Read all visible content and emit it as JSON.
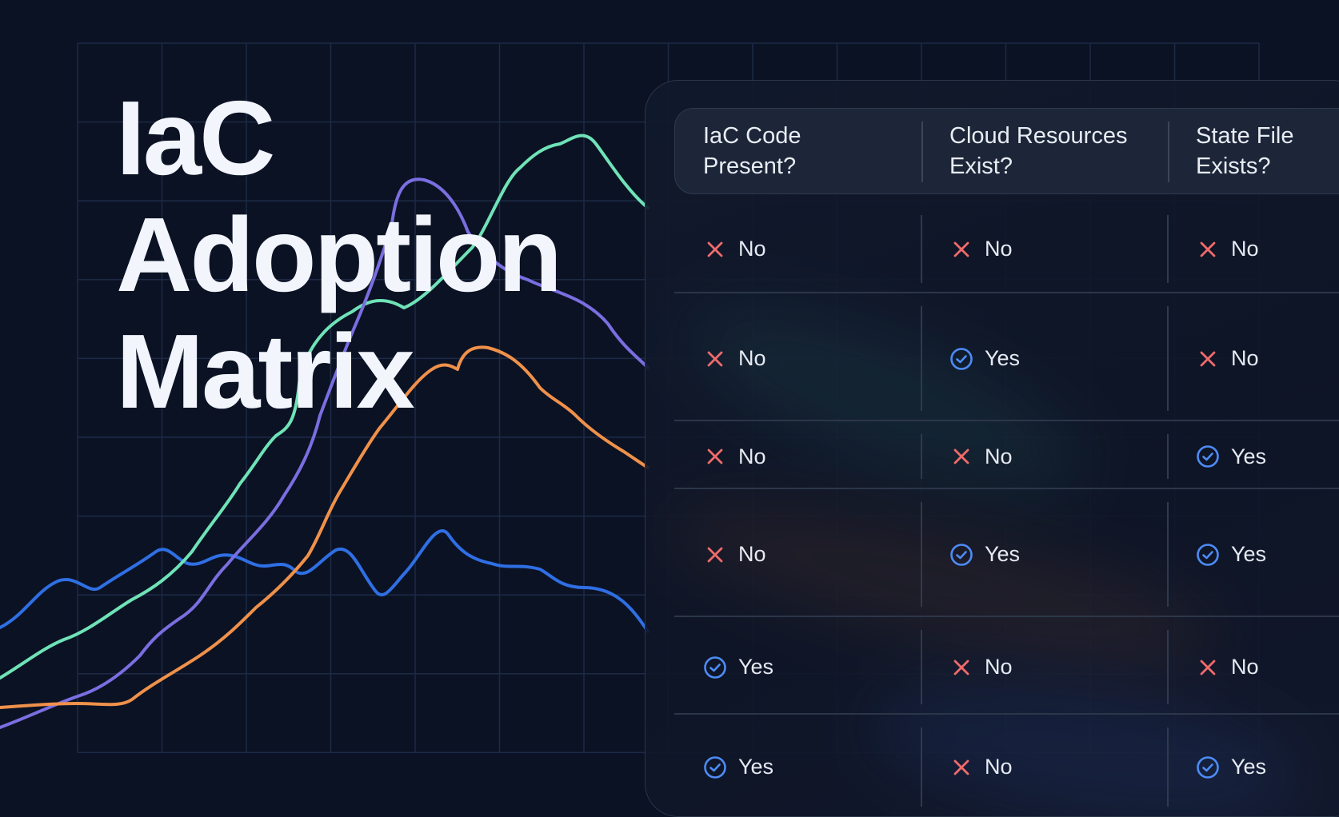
{
  "title": {
    "line1": "IaC",
    "line2": "Adoption",
    "line3": "Matrix"
  },
  "colors": {
    "background": "#0b1224",
    "series": [
      "#2f6fe4",
      "#6fe3b7",
      "#7a6ee0",
      "#f0914a"
    ],
    "yes_icon": "#4d8cf5",
    "no_icon": "#ef6b6b"
  },
  "icons": {
    "yes": "check-circle-icon",
    "no": "cross-icon"
  },
  "table": {
    "headers": [
      {
        "line1": "IaC Code",
        "line2": "Present?"
      },
      {
        "line1": "Cloud Resources",
        "line2": "Exist?"
      },
      {
        "line1": "State File",
        "line2": "Exists?"
      }
    ],
    "rows": [
      [
        {
          "value": "No"
        },
        {
          "value": "No"
        },
        {
          "value": "No"
        }
      ],
      [
        {
          "value": "No"
        },
        {
          "value": "Yes"
        },
        {
          "value": "No"
        }
      ],
      [
        {
          "value": "No"
        },
        {
          "value": "No"
        },
        {
          "value": "Yes"
        }
      ],
      [
        {
          "value": "No"
        },
        {
          "value": "Yes"
        },
        {
          "value": "Yes"
        }
      ],
      [
        {
          "value": "Yes"
        },
        {
          "value": "No"
        },
        {
          "value": "No"
        }
      ],
      [
        {
          "value": "Yes"
        },
        {
          "value": "No"
        },
        {
          "value": "Yes"
        }
      ]
    ]
  }
}
